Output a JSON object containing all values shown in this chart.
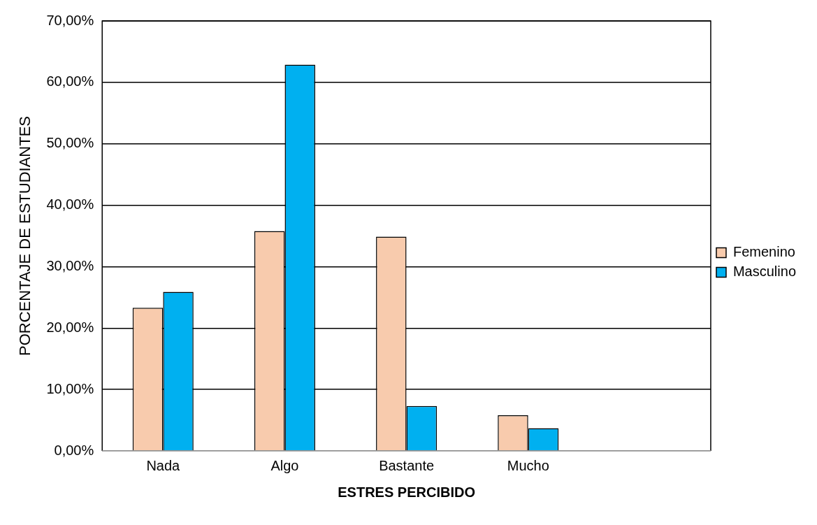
{
  "chart_data": {
    "type": "bar",
    "xlabel": "ESTRES PERCIBIDO",
    "ylabel": "PORCENTAJE DE ESTUDIANTES",
    "categories": [
      "Nada",
      "Algo",
      "Bastante",
      "Mucho",
      null
    ],
    "series": [
      {
        "name": "Femenino",
        "color": "#f8cbad",
        "values": [
          23.3,
          35.8,
          34.9,
          5.8,
          null
        ]
      },
      {
        "name": "Masculino",
        "color": "#00b0f0",
        "values": [
          25.9,
          62.9,
          7.3,
          3.7,
          null
        ]
      }
    ],
    "ylim": [
      0,
      70
    ],
    "yticks": [
      {
        "value": 0,
        "label": "0,00%"
      },
      {
        "value": 10,
        "label": "10,00%"
      },
      {
        "value": 20,
        "label": "20,00%"
      },
      {
        "value": 30,
        "label": "30,00%"
      },
      {
        "value": 40,
        "label": "40,00%"
      },
      {
        "value": 50,
        "label": "50,00%"
      },
      {
        "value": 60,
        "label": "60,00%"
      },
      {
        "value": 70,
        "label": "70,00%"
      }
    ],
    "grid": "y",
    "legend": "right"
  }
}
